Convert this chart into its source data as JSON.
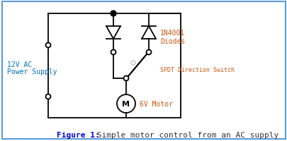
{
  "bg_color": "#ffffff",
  "border_color": "#5b9bd5",
  "line_color": "#000000",
  "text_color_blue": "#0070c0",
  "text_color_orange": "#c55a11",
  "caption_bold_color": "#0000cc",
  "caption_normal_color": "#333333",
  "fig_width": 4.06,
  "fig_height": 2.01,
  "dpi": 100,
  "caption_bold": "Figure 1:",
  "caption_rest": " Simple motor control from an AC supply",
  "label_12v": "12V AC\nPower Supply",
  "label_diodes": "1N4001\nDiodes",
  "label_switch": "SPDT Direction Switch",
  "label_motor": "6V Motor"
}
